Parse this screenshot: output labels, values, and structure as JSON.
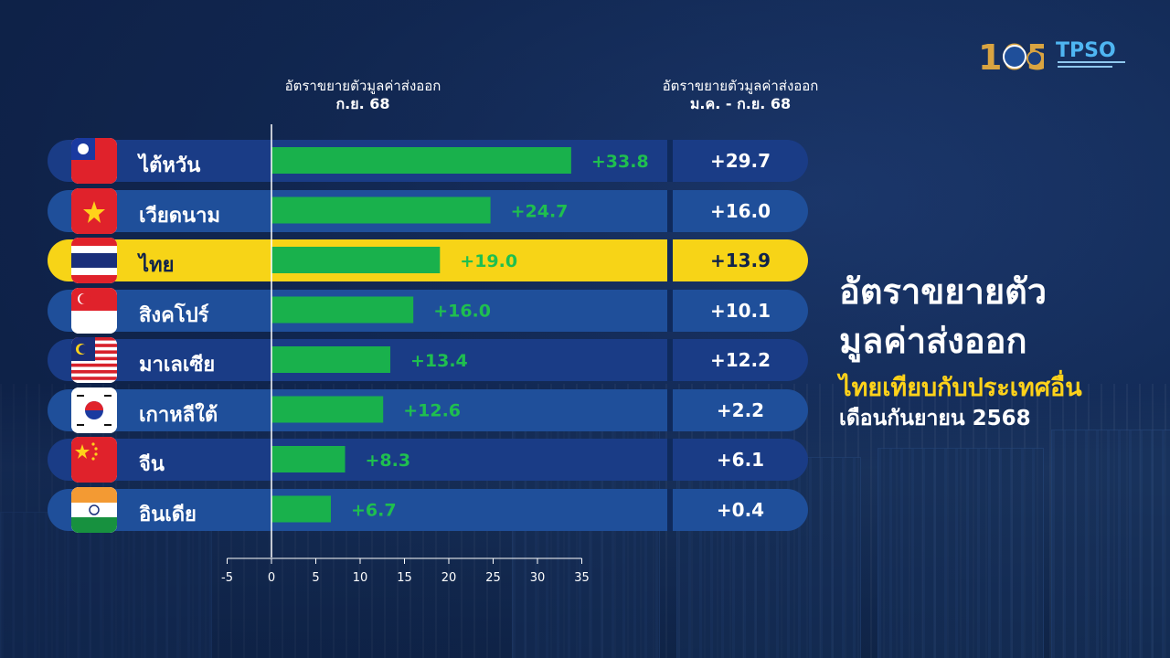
{
  "header": {
    "col1_line1": "อัตราขยายตัวมูลค่าส่งออก",
    "col1_line2": "ก.ย. 68",
    "col2_line1": "อัตราขยายตัวมูลค่าส่งออก",
    "col2_line2": "ม.ค. - ก.ย. 68"
  },
  "title": {
    "line1": "อัตราขยายตัว",
    "line2": "มูลค่าส่งออก",
    "line3": "ไทยเทียบกับประเทศอื่น",
    "line4": "เดือนกันยายน 2568"
  },
  "logos": {
    "org_name": "TPSO",
    "anniversary": "105"
  },
  "colors": {
    "bar": "#19b14c",
    "highlight": "#f7d417",
    "row_navy": "#1a3c86",
    "row_blue": "#1f4f9a",
    "title_accent": "#ffd21a"
  },
  "chart_data": {
    "type": "bar",
    "orientation": "horizontal",
    "categories": [
      "ไต้หวัน",
      "เวียดนาม",
      "ไทย",
      "สิงคโปร์",
      "มาเลเซีย",
      "เกาหลีใต้",
      "จีน",
      "อินเดีย"
    ],
    "flags": [
      "taiwan-flag-icon",
      "vietnam-flag-icon",
      "thailand-flag-icon",
      "singapore-flag-icon",
      "malaysia-flag-icon",
      "south-korea-flag-icon",
      "china-flag-icon",
      "india-flag-icon"
    ],
    "series": [
      {
        "values": [
          33.8,
          24.7,
          19.0,
          16.0,
          13.4,
          12.6,
          8.3,
          6.7
        ],
        "labels": [
          "+33.8",
          "+24.7",
          "+19.0",
          "+16.0",
          "+13.4",
          "+12.6",
          "+8.3",
          "+6.7"
        ]
      }
    ],
    "ytd": {
      "values": [
        29.7,
        16.0,
        13.9,
        10.1,
        12.2,
        2.2,
        6.1,
        0.4
      ],
      "labels": [
        "+29.7",
        "+16.0",
        "+13.9",
        "+10.1",
        "+12.2",
        "+2.2",
        "+6.1",
        "+0.4"
      ]
    },
    "highlight_category": "ไทย",
    "xlim": [
      -5,
      35
    ],
    "xticks": [
      "-5",
      "0",
      "5",
      "10",
      "15",
      "20",
      "25",
      "30",
      "35"
    ]
  }
}
